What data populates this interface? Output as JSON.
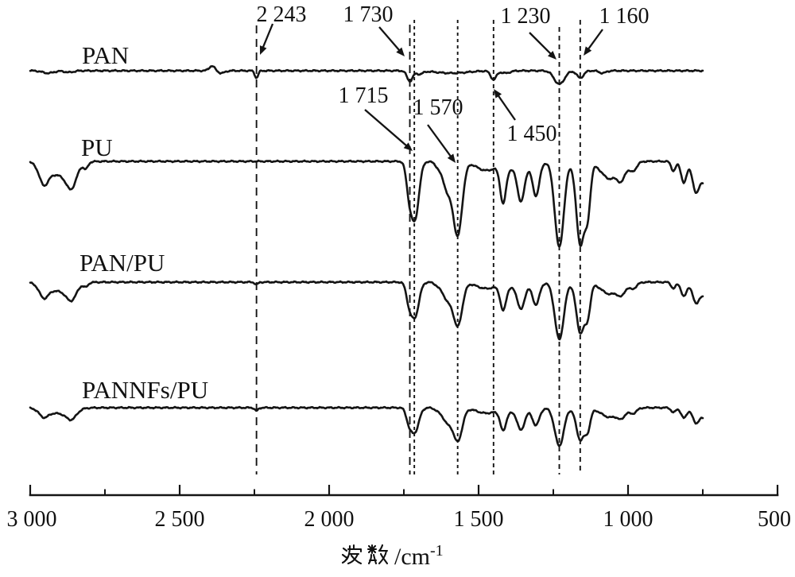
{
  "chart_data": {
    "type": "line",
    "description": "FTIR transmittance spectra, four stacked curves",
    "xlabel": "波数/cm⁻¹",
    "x_axis": {
      "min": 3000,
      "max": 500,
      "direction": "decreasing",
      "ticks": [
        3000,
        2500,
        2000,
        1500,
        1000,
        500
      ],
      "tick_labels": [
        "3 000",
        "2 500",
        "2 000",
        "1 500",
        "1 000",
        "500"
      ],
      "minor_ticks": [
        2750,
        2250,
        1750,
        1250,
        750
      ]
    },
    "annotations": [
      {
        "label": "2 243",
        "wn": 2243
      },
      {
        "label": "1 730",
        "wn": 1730
      },
      {
        "label": "1 715",
        "wn": 1715
      },
      {
        "label": "1 570",
        "wn": 1570
      },
      {
        "label": "1 450",
        "wn": 1450
      },
      {
        "label": "1 230",
        "wn": 1230
      },
      {
        "label": "1 160",
        "wn": 1160
      }
    ],
    "line_color": "#141414",
    "series": [
      {
        "label": "PAN",
        "peaks_wn_depth_width": [
          [
            2940,
            3,
            10
          ],
          [
            2870,
            2,
            8
          ],
          [
            2392,
            -6,
            5
          ],
          [
            2360,
            3,
            6
          ],
          [
            2243,
            9,
            3
          ],
          [
            1730,
            13,
            5
          ],
          [
            1698,
            4,
            6
          ],
          [
            1590,
            3,
            28
          ],
          [
            1450,
            11,
            5
          ],
          [
            1410,
            3,
            8
          ],
          [
            1230,
            17,
            9
          ],
          [
            1160,
            9,
            6
          ],
          [
            1085,
            3,
            6
          ]
        ]
      },
      {
        "label": "PU",
        "peaks_wn_depth_width": [
          [
            2955,
            22,
            8
          ],
          [
            2905,
            17,
            22
          ],
          [
            2862,
            25,
            9
          ],
          [
            2814,
            8,
            4
          ],
          [
            1733,
            30,
            5
          ],
          [
            1713,
            72,
            7
          ],
          [
            1630,
            9,
            7
          ],
          [
            1604,
            33,
            7
          ],
          [
            1570,
            93,
            8
          ],
          [
            1480,
            10,
            16
          ],
          [
            1418,
            45,
            5
          ],
          [
            1380,
            10,
            26
          ],
          [
            1358,
            42,
            6
          ],
          [
            1308,
            40,
            6
          ],
          [
            1230,
            108,
            8
          ],
          [
            1160,
            104,
            7
          ],
          [
            1135,
            60,
            5
          ],
          [
            1060,
            22,
            16
          ],
          [
            1022,
            16,
            6
          ],
          [
            985,
            12,
            7
          ],
          [
            848,
            12,
            4
          ],
          [
            813,
            27,
            5
          ],
          [
            773,
            39,
            6
          ],
          [
            745,
            25,
            6
          ]
        ]
      },
      {
        "label": "PAN/PU",
        "peaks_wn_depth_width": [
          [
            2955,
            15,
            8
          ],
          [
            2905,
            11,
            22
          ],
          [
            2862,
            17,
            9
          ],
          [
            2814,
            5,
            4
          ],
          [
            2243,
            3,
            3
          ],
          [
            1733,
            20,
            5
          ],
          [
            1713,
            43,
            7
          ],
          [
            1630,
            6,
            7
          ],
          [
            1604,
            20,
            7
          ],
          [
            1570,
            55,
            8
          ],
          [
            1480,
            7,
            16
          ],
          [
            1418,
            30,
            5
          ],
          [
            1380,
            7,
            26
          ],
          [
            1358,
            28,
            6
          ],
          [
            1308,
            26,
            6
          ],
          [
            1230,
            72,
            8
          ],
          [
            1160,
            63,
            7
          ],
          [
            1135,
            38,
            5
          ],
          [
            1060,
            15,
            16
          ],
          [
            1022,
            11,
            6
          ],
          [
            985,
            8,
            7
          ],
          [
            848,
            8,
            4
          ],
          [
            813,
            18,
            5
          ],
          [
            773,
            26,
            6
          ],
          [
            745,
            17,
            6
          ]
        ]
      },
      {
        "label": "PANNFs/PU",
        "peaks_wn_depth_width": [
          [
            2955,
            9,
            8
          ],
          [
            2905,
            7,
            22
          ],
          [
            2862,
            11,
            9
          ],
          [
            2243,
            4,
            3
          ],
          [
            1733,
            15,
            5
          ],
          [
            1713,
            30,
            7
          ],
          [
            1630,
            5,
            7
          ],
          [
            1604,
            17,
            7
          ],
          [
            1570,
            42,
            8
          ],
          [
            1480,
            6,
            16
          ],
          [
            1418,
            24,
            5
          ],
          [
            1380,
            6,
            26
          ],
          [
            1358,
            23,
            6
          ],
          [
            1308,
            20,
            6
          ],
          [
            1230,
            48,
            8
          ],
          [
            1160,
            40,
            7
          ],
          [
            1135,
            25,
            5
          ],
          [
            1060,
            12,
            16
          ],
          [
            1022,
            9,
            6
          ],
          [
            985,
            7,
            7
          ],
          [
            848,
            6,
            4
          ],
          [
            813,
            13,
            5
          ],
          [
            773,
            19,
            6
          ],
          [
            745,
            12,
            6
          ]
        ]
      }
    ]
  }
}
